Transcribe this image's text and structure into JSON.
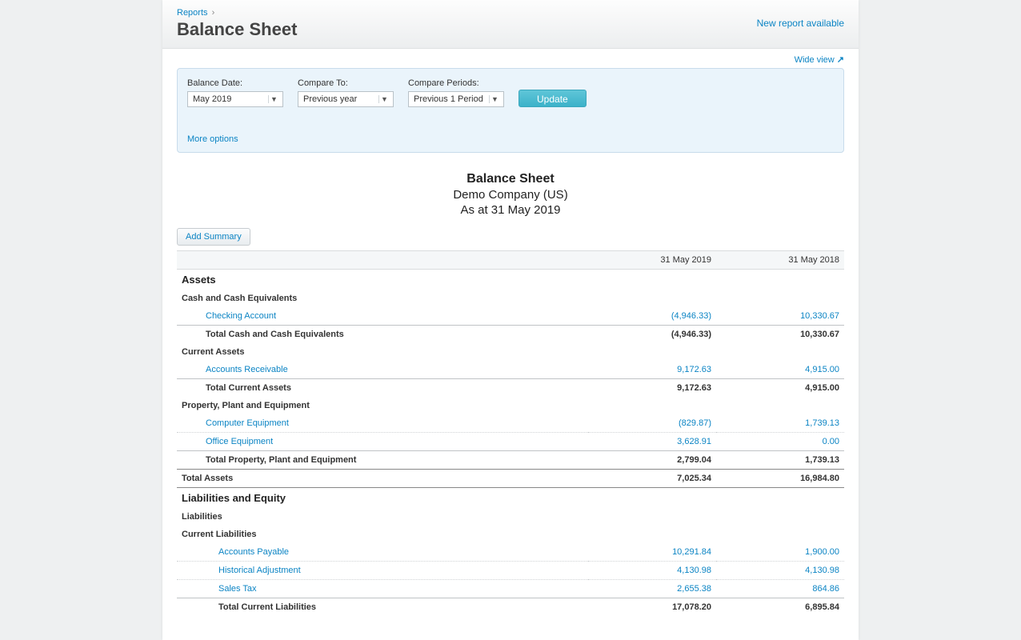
{
  "breadcrumb": {
    "root": "Reports"
  },
  "pageTitle": "Balance Sheet",
  "newReportLink": "New report available",
  "wideViewLabel": "Wide view",
  "filters": {
    "balanceDate": {
      "label": "Balance Date:",
      "value": "May 2019"
    },
    "compareTo": {
      "label": "Compare To:",
      "value": "Previous year"
    },
    "comparePeriods": {
      "label": "Compare Periods:",
      "value": "Previous 1 Period"
    },
    "updateButton": "Update",
    "moreOptions": "More options"
  },
  "report": {
    "title": "Balance Sheet",
    "company": "Demo Company (US)",
    "asAt": "As at 31 May 2019",
    "addSummary": "Add Summary",
    "columns": [
      "31 May 2019",
      "31 May 2018"
    ],
    "sections": [
      {
        "name": "Assets",
        "groups": [
          {
            "name": "Cash and Cash Equivalents",
            "lines": [
              {
                "label": "Checking Account",
                "vals": [
                  "(4,946.33)",
                  "10,330.67"
                ],
                "link": true
              }
            ],
            "total": {
              "label": "Total Cash and Cash Equivalents",
              "vals": [
                "(4,946.33)",
                "10,330.67"
              ]
            }
          },
          {
            "name": "Current Assets",
            "lines": [
              {
                "label": "Accounts Receivable",
                "vals": [
                  "9,172.63",
                  "4,915.00"
                ],
                "link": true
              }
            ],
            "total": {
              "label": "Total Current Assets",
              "vals": [
                "9,172.63",
                "4,915.00"
              ]
            }
          },
          {
            "name": "Property, Plant and Equipment",
            "lines": [
              {
                "label": "Computer Equipment",
                "vals": [
                  "(829.87)",
                  "1,739.13"
                ],
                "link": true
              },
              {
                "label": "Office Equipment",
                "vals": [
                  "3,628.91",
                  "0.00"
                ],
                "link": true
              }
            ],
            "total": {
              "label": "Total Property, Plant and Equipment",
              "vals": [
                "2,799.04",
                "1,739.13"
              ]
            }
          }
        ],
        "grandTotal": {
          "label": "Total Assets",
          "vals": [
            "7,025.34",
            "16,984.80"
          ]
        }
      },
      {
        "name": "Liabilities and Equity",
        "subgroups": [
          {
            "name": "Liabilities",
            "groups": [
              {
                "name": "Current Liabilities",
                "lines": [
                  {
                    "label": "Accounts Payable",
                    "vals": [
                      "10,291.84",
                      "1,900.00"
                    ],
                    "link": true
                  },
                  {
                    "label": "Historical Adjustment",
                    "vals": [
                      "4,130.98",
                      "4,130.98"
                    ],
                    "link": true
                  },
                  {
                    "label": "Sales Tax",
                    "vals": [
                      "2,655.38",
                      "864.86"
                    ],
                    "link": true
                  }
                ],
                "total": {
                  "label": "Total Current Liabilities",
                  "vals": [
                    "17,078.20",
                    "6,895.84"
                  ]
                }
              }
            ]
          }
        ]
      }
    ]
  }
}
